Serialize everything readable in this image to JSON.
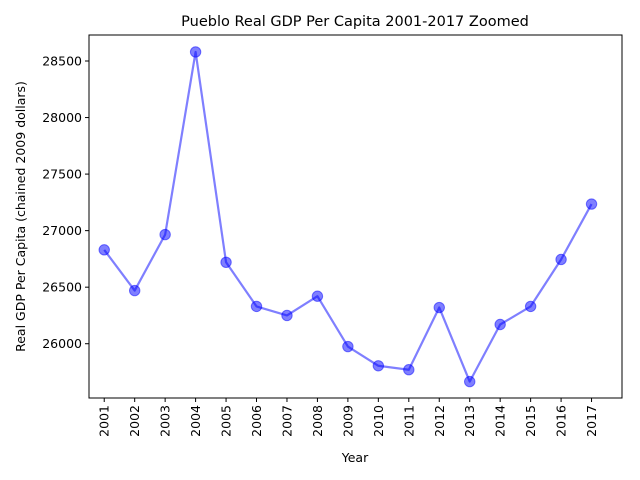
{
  "chart_data": {
    "type": "line",
    "title": "Pueblo Real GDP Per Capita 2001-2017 Zoomed",
    "xlabel": "Year",
    "ylabel": "Real GDP Per Capita (chained 2009 dollars)",
    "categories": [
      "2001",
      "2002",
      "2003",
      "2004",
      "2005",
      "2006",
      "2007",
      "2008",
      "2009",
      "2010",
      "2011",
      "2012",
      "2013",
      "2014",
      "2015",
      "2016",
      "2017"
    ],
    "series": [
      {
        "values": [
          26830,
          26470,
          26965,
          28580,
          26720,
          26330,
          26250,
          26420,
          25975,
          25805,
          25770,
          26320,
          25665,
          26170,
          26330,
          26745,
          27235
        ]
      }
    ],
    "yticks": [
      26000,
      26500,
      27000,
      27500,
      28000,
      28500
    ],
    "ylim": [
      25520,
      28730
    ],
    "grid": false,
    "legend": "none",
    "color": "#0000ff"
  }
}
